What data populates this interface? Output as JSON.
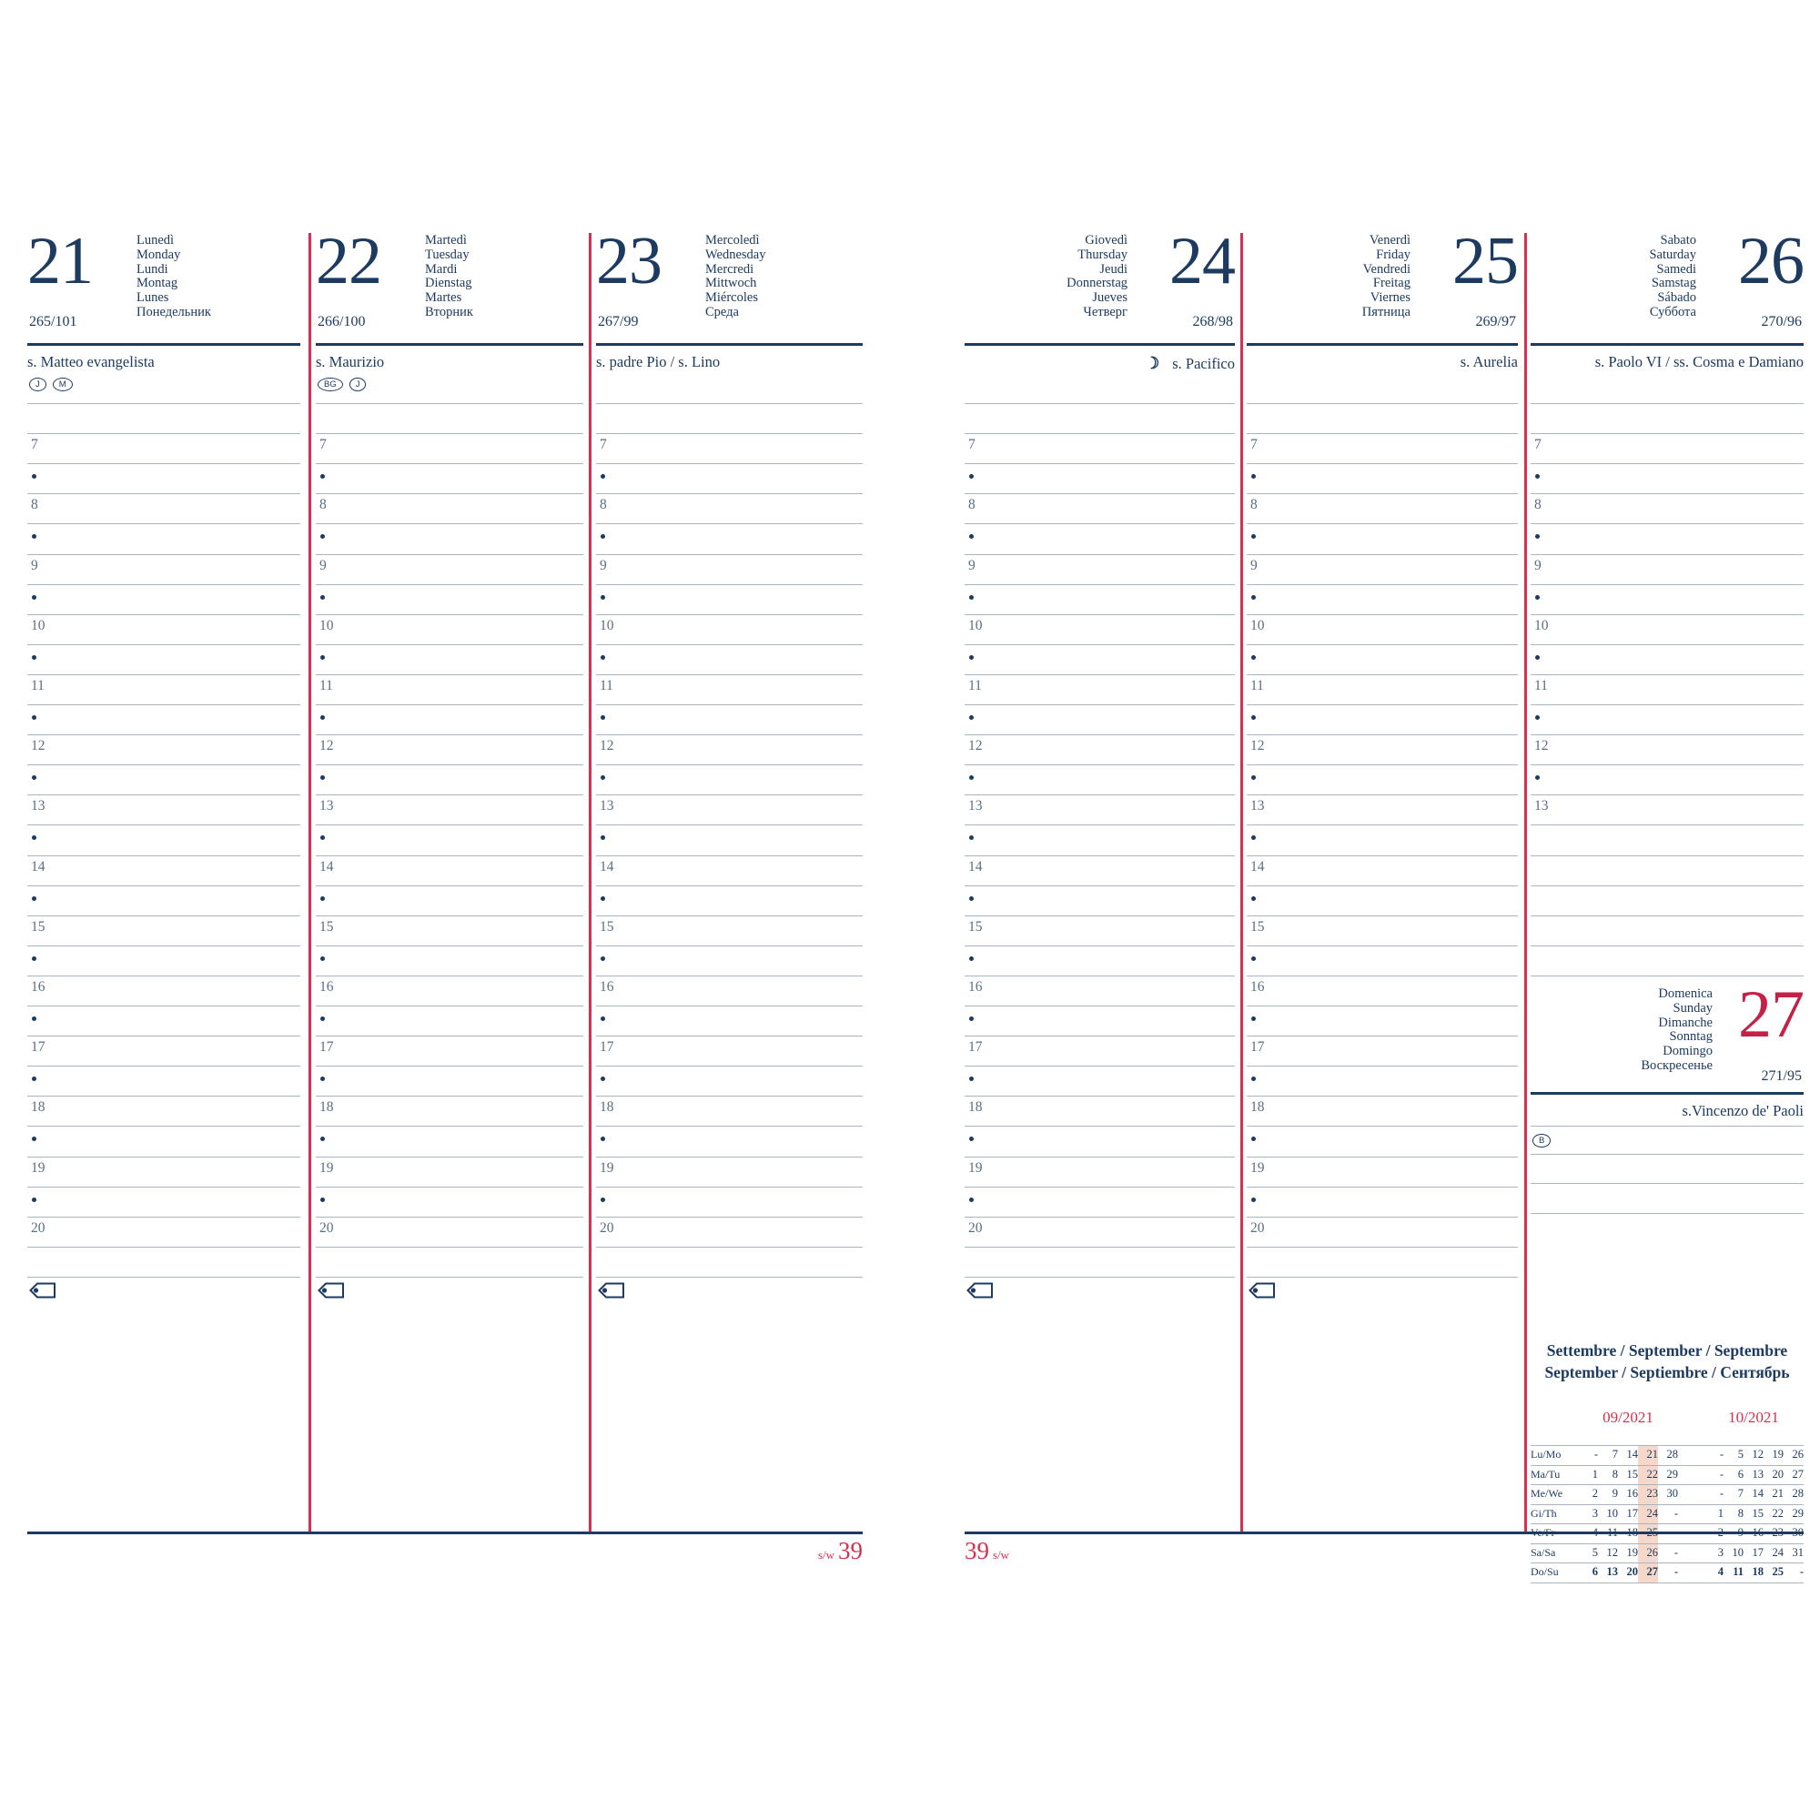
{
  "week": {
    "label": "s/w",
    "number": "39"
  },
  "hours": [
    "7",
    "8",
    "9",
    "10",
    "11",
    "12",
    "13",
    "14",
    "15",
    "16",
    "17",
    "18",
    "19",
    "20"
  ],
  "days": [
    {
      "number": "21",
      "code": "265/101",
      "names": [
        "Lunedì",
        "Monday",
        "Lundi",
        "Montag",
        "Lunes",
        "Понедельник"
      ],
      "saint": "s. Matteo evangelista",
      "badges": [
        "J",
        "M"
      ]
    },
    {
      "number": "22",
      "code": "266/100",
      "names": [
        "Martedì",
        "Tuesday",
        "Mardi",
        "Dienstag",
        "Martes",
        "Вторник"
      ],
      "saint": "s. Maurizio",
      "badges": [
        "BG",
        "J"
      ]
    },
    {
      "number": "23",
      "code": "267/99",
      "names": [
        "Mercoledì",
        "Wednesday",
        "Mercredi",
        "Mittwoch",
        "Miércoles",
        "Среда"
      ],
      "saint": "s. padre Pio / s. Lino",
      "badges": []
    },
    {
      "number": "24",
      "code": "268/98",
      "names": [
        "Giovedì",
        "Thursday",
        "Jeudi",
        "Donnerstag",
        "Jueves",
        "Четверг"
      ],
      "saint": "s. Pacifico",
      "moon": "☽",
      "badges": []
    },
    {
      "number": "25",
      "code": "269/97",
      "names": [
        "Venerdì",
        "Friday",
        "Vendredi",
        "Freitag",
        "Viernes",
        "Пятница"
      ],
      "saint": "s. Aurelia",
      "badges": []
    },
    {
      "number": "26",
      "code": "270/96",
      "names": [
        "Sabato",
        "Saturday",
        "Samedi",
        "Samstag",
        "Sábado",
        "Суббота"
      ],
      "saint": "s. Paolo VI / ss. Cosma e Damiano",
      "badges": []
    },
    {
      "number": "27",
      "code": "271/95",
      "names": [
        "Domenica",
        "Sunday",
        "Dimanche",
        "Sonntag",
        "Domingo",
        "Воскресенье"
      ],
      "saint": "s.Vincenzo de' Paoli",
      "badges": [
        "B"
      ]
    }
  ],
  "mini_calendar": {
    "title_line1": "Settembre / September / Septembre",
    "title_line2": "September / Septiembre / Сентябрь",
    "months": [
      "09/2021",
      "10/2021"
    ],
    "row_labels": [
      "Lu/Mo",
      "Ma/Tu",
      "Me/We",
      "Gi/Th",
      "Ve/Fr",
      "Sa/Sa",
      "Do/Su"
    ],
    "september": [
      [
        "-",
        "7",
        "14",
        "21",
        "28"
      ],
      [
        "1",
        "8",
        "15",
        "22",
        "29"
      ],
      [
        "2",
        "9",
        "16",
        "23",
        "30"
      ],
      [
        "3",
        "10",
        "17",
        "24",
        "-"
      ],
      [
        "4",
        "11",
        "18",
        "25",
        "-"
      ],
      [
        "5",
        "12",
        "19",
        "26",
        "-"
      ],
      [
        "6",
        "13",
        "20",
        "27",
        "-"
      ]
    ],
    "october": [
      [
        "-",
        "5",
        "12",
        "19",
        "26"
      ],
      [
        "-",
        "6",
        "13",
        "20",
        "27"
      ],
      [
        "-",
        "7",
        "14",
        "21",
        "28"
      ],
      [
        "1",
        "8",
        "15",
        "22",
        "29"
      ],
      [
        "2",
        "9",
        "16",
        "23",
        "30"
      ],
      [
        "3",
        "10",
        "17",
        "24",
        "31"
      ],
      [
        "4",
        "11",
        "18",
        "25",
        "-"
      ]
    ],
    "highlight_col": 3,
    "bold_row": "Do/Su"
  },
  "colors": {
    "navy": "#1d3a61",
    "slate": "#5a6e84",
    "line": "#a9b5c2",
    "red": "#d8314f",
    "red_day": "#c52045",
    "highlight": "#f6d8cb"
  }
}
